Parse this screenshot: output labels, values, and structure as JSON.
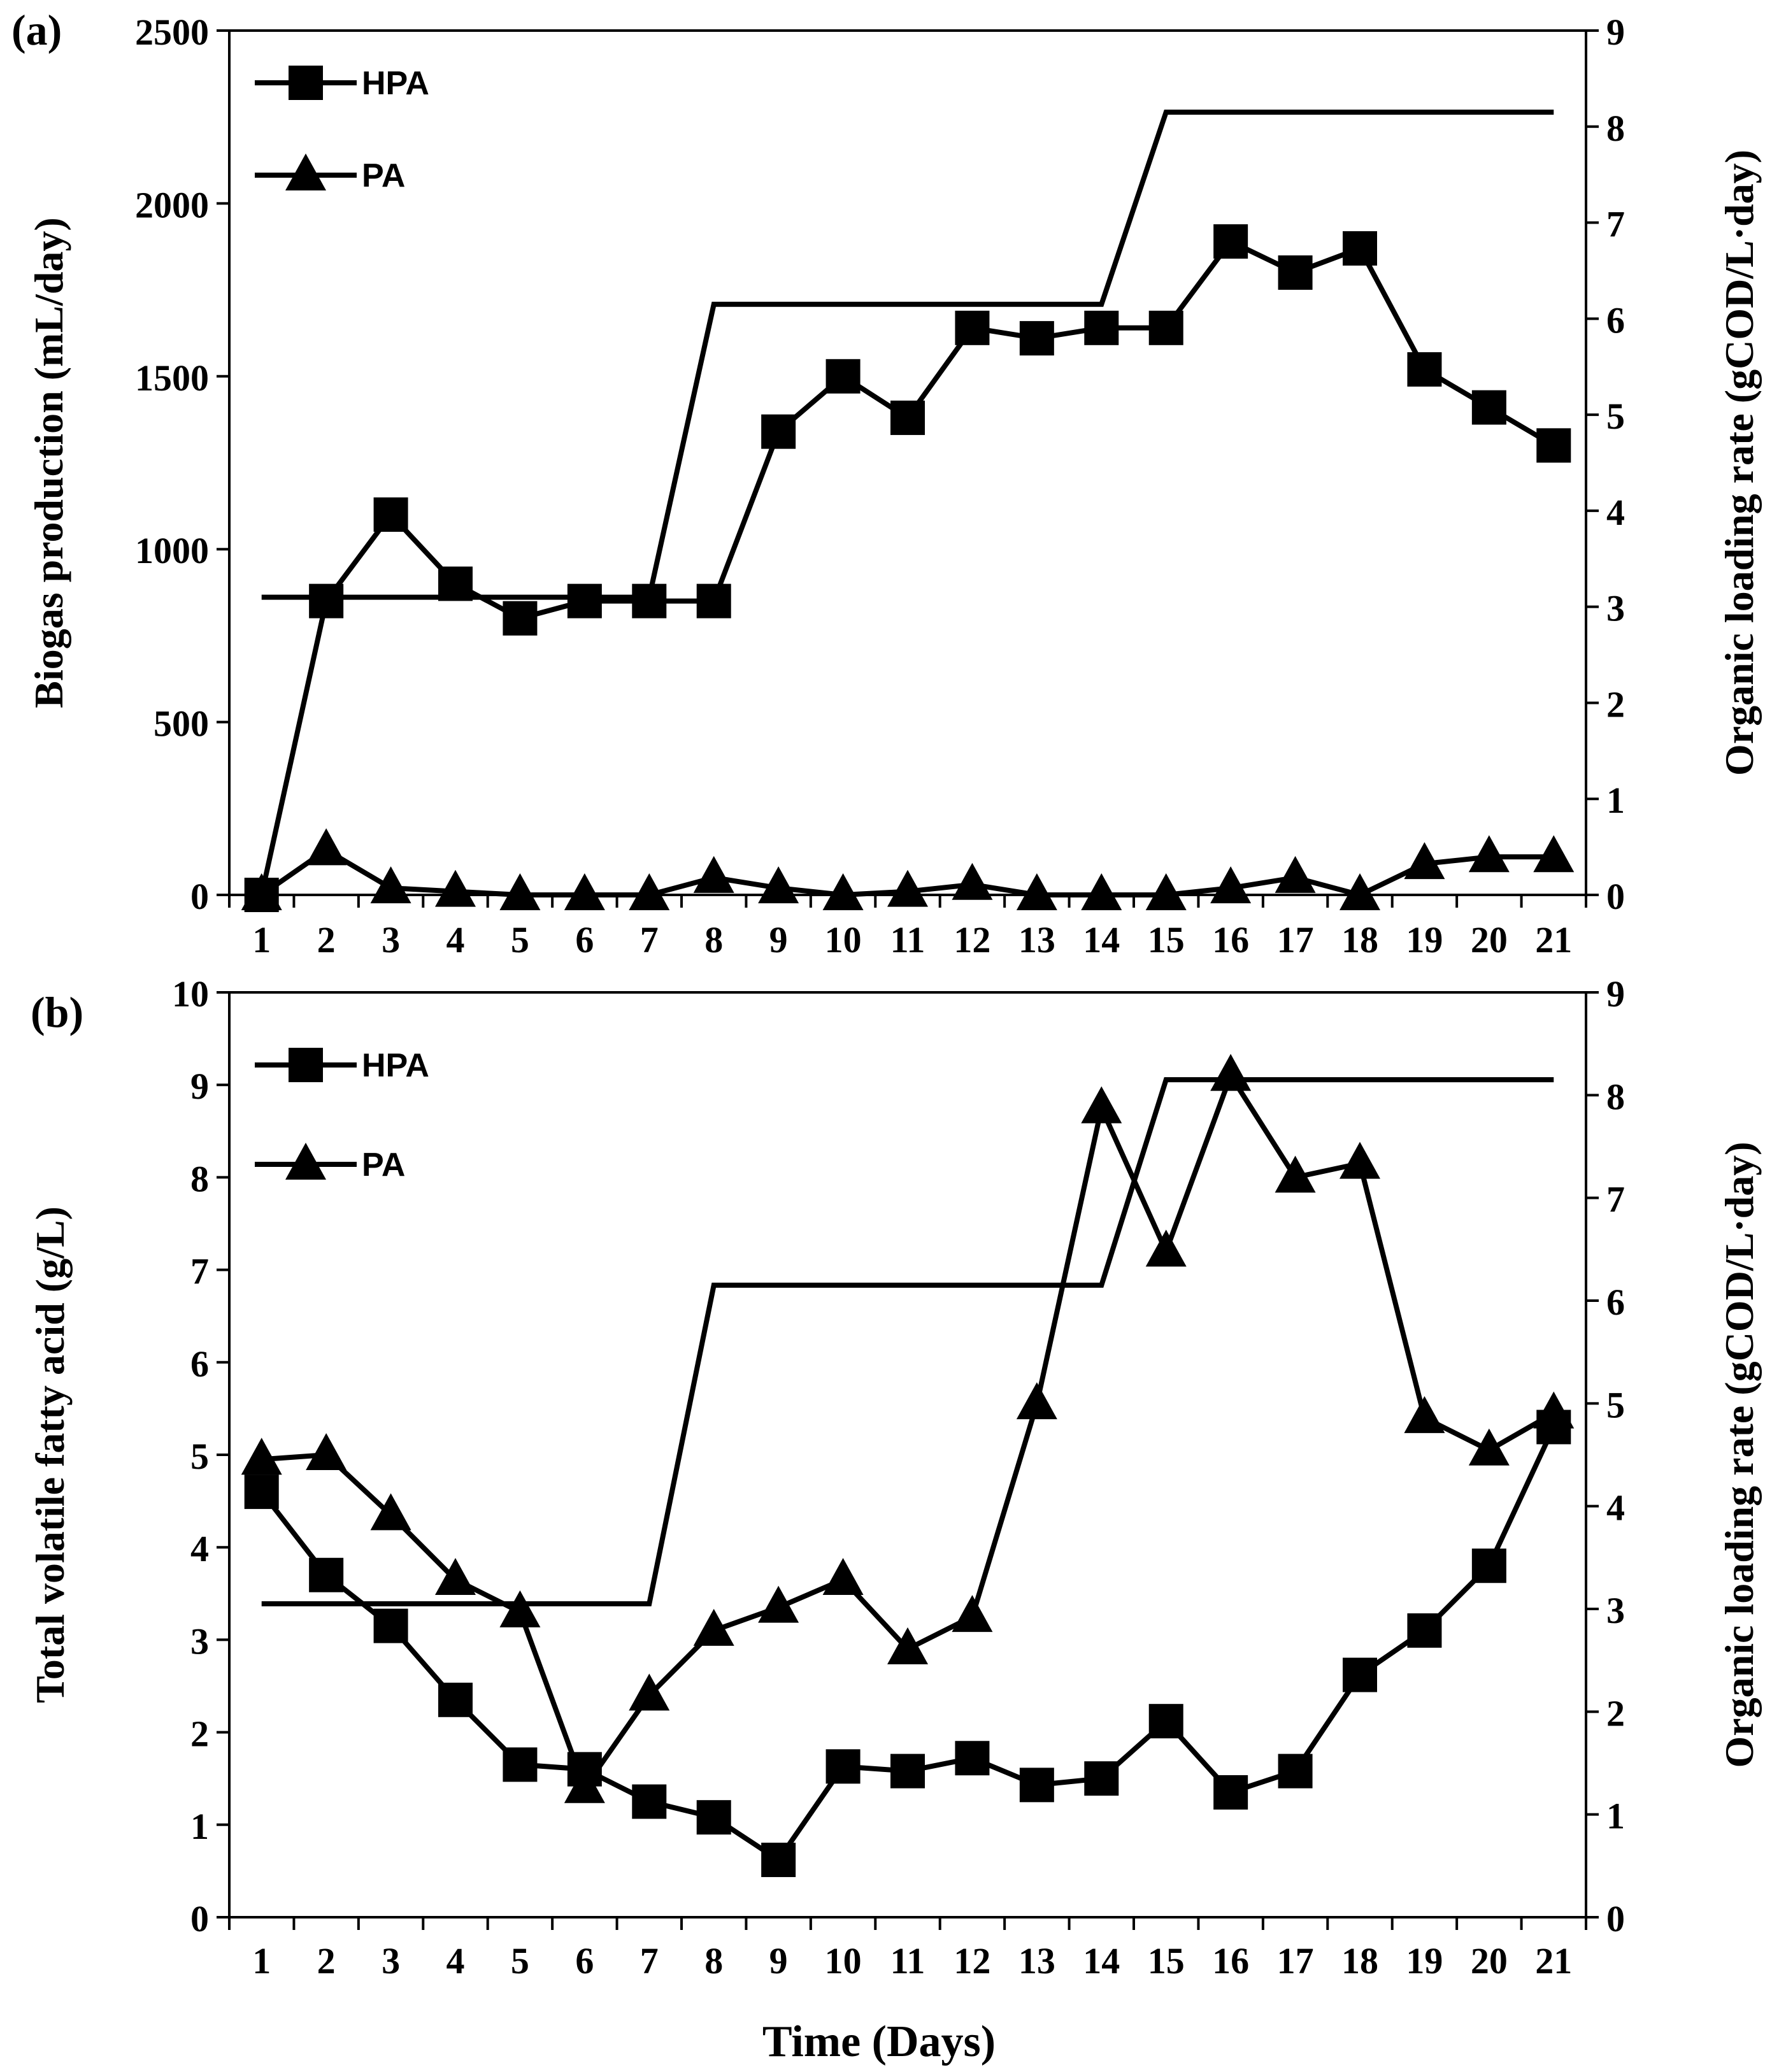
{
  "x_title": "Time (Days)",
  "chart_data": [
    {
      "type": "line",
      "panel_label": "(a)",
      "title": "",
      "xlabel": "",
      "ylabel": "Biogas production  (mL/day)",
      "y2label": "Organic loading rate (gCOD/L·day)",
      "categories": [
        "1",
        "2",
        "3",
        "4",
        "5",
        "6",
        "7",
        "8",
        "9",
        "10",
        "11",
        "12",
        "13",
        "14",
        "15",
        "16",
        "17",
        "18",
        "19",
        "20",
        "21"
      ],
      "ylim": [
        0,
        2500
      ],
      "yticks": [
        0,
        500,
        1000,
        1500,
        2000,
        2500
      ],
      "y2lim": [
        0,
        9
      ],
      "y2ticks": [
        0,
        1,
        2,
        3,
        4,
        5,
        6,
        7,
        8,
        9
      ],
      "legend_position": "top-left",
      "series": [
        {
          "name": "HPA",
          "marker": "square",
          "axis": "left",
          "values": [
            0,
            850,
            1100,
            900,
            800,
            850,
            850,
            850,
            1340,
            1500,
            1380,
            1640,
            1610,
            1640,
            1640,
            1890,
            1800,
            1870,
            1520,
            1410,
            1300
          ]
        },
        {
          "name": "PA",
          "marker": "triangle",
          "axis": "left",
          "values": [
            0,
            130,
            20,
            10,
            0,
            0,
            0,
            50,
            20,
            0,
            10,
            30,
            0,
            0,
            0,
            20,
            50,
            0,
            90,
            110,
            110
          ]
        },
        {
          "name": "Organic loading rate",
          "marker": "none",
          "axis": "right",
          "legend": false,
          "points": [
            [
              1,
              3.1
            ],
            [
              7,
              3.1
            ],
            [
              8,
              6.15
            ],
            [
              14,
              6.15
            ],
            [
              15,
              8.15
            ],
            [
              21,
              8.15
            ]
          ]
        }
      ]
    },
    {
      "type": "line",
      "panel_label": "(b)",
      "title": "",
      "xlabel": "Time (Days)",
      "ylabel": "Total volatile fatty acid (g/L)",
      "y2label": "Organic loading rate (gCOD/L·day)",
      "categories": [
        "1",
        "2",
        "3",
        "4",
        "5",
        "6",
        "7",
        "8",
        "9",
        "10",
        "11",
        "12",
        "13",
        "14",
        "15",
        "16",
        "17",
        "18",
        "19",
        "20",
        "21"
      ],
      "ylim": [
        0,
        10
      ],
      "yticks": [
        0,
        1,
        2,
        3,
        4,
        5,
        6,
        7,
        8,
        9,
        10
      ],
      "y2lim": [
        0,
        9
      ],
      "y2ticks": [
        0,
        1,
        2,
        3,
        4,
        5,
        6,
        7,
        8,
        9
      ],
      "legend_position": "top-left",
      "series": [
        {
          "name": "HPA",
          "marker": "square",
          "axis": "left",
          "values": [
            4.6,
            3.7,
            3.15,
            2.35,
            1.65,
            1.6,
            1.25,
            1.08,
            0.62,
            1.63,
            1.58,
            1.72,
            1.43,
            1.5,
            2.12,
            1.35,
            1.58,
            2.62,
            3.1,
            3.8,
            5.3
          ]
        },
        {
          "name": "PA",
          "marker": "triangle",
          "axis": "left",
          "values": [
            4.95,
            5.0,
            4.35,
            3.65,
            3.3,
            1.4,
            2.4,
            3.1,
            3.35,
            3.65,
            2.9,
            3.25,
            5.55,
            8.75,
            7.2,
            9.1,
            8.0,
            8.15,
            5.4,
            5.05,
            5.45
          ]
        },
        {
          "name": "Organic loading rate",
          "marker": "none",
          "axis": "right",
          "legend": false,
          "points": [
            [
              1,
              3.05
            ],
            [
              7,
              3.05
            ],
            [
              8,
              6.15
            ],
            [
              14,
              6.15
            ],
            [
              15,
              8.15
            ],
            [
              21,
              8.15
            ]
          ]
        }
      ]
    }
  ]
}
